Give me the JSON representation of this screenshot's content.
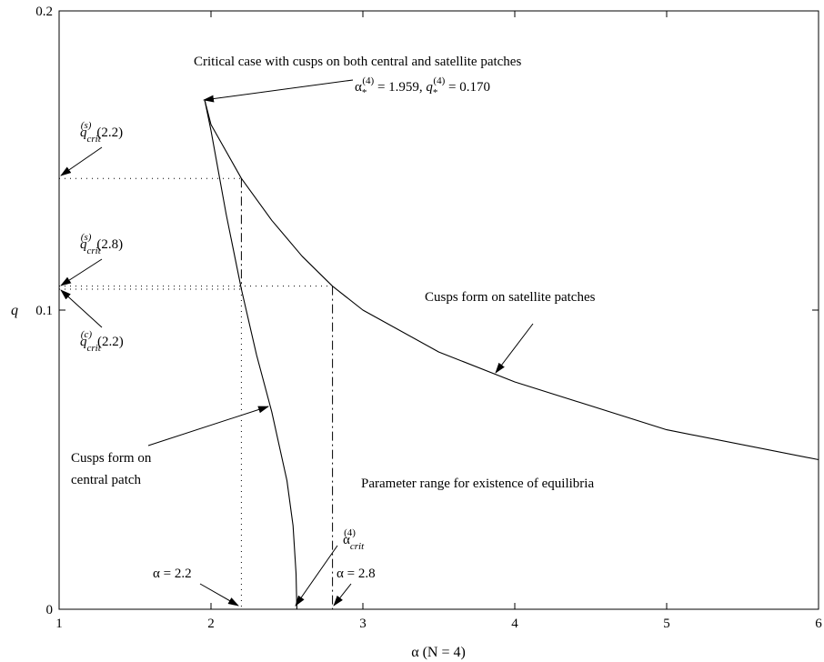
{
  "chart_data": {
    "type": "line",
    "xlabel": "α (N = 4)",
    "ylabel": "q",
    "xlim": [
      1,
      6
    ],
    "ylim": [
      0,
      0.2
    ],
    "xticks": [
      "1",
      "2",
      "3",
      "4",
      "5",
      "6"
    ],
    "yticks": [
      "0",
      "0.1",
      "0.2"
    ],
    "grid": false,
    "series": [
      {
        "name": "Cusps form on satellite patches",
        "x": [
          1.959,
          2.0,
          2.2,
          2.4,
          2.6,
          2.8,
          3.0,
          3.5,
          4.0,
          5.0,
          6.0
        ],
        "y": [
          0.17,
          0.162,
          0.144,
          0.13,
          0.118,
          0.108,
          0.1,
          0.086,
          0.076,
          0.06,
          0.05
        ]
      },
      {
        "name": "Cusps form on central patch",
        "x": [
          1.959,
          2.0,
          2.1,
          2.2,
          2.3,
          2.4,
          2.5,
          2.54,
          2.56,
          2.565
        ],
        "y": [
          0.17,
          0.16,
          0.132,
          0.107,
          0.085,
          0.066,
          0.043,
          0.028,
          0.012,
          0.0
        ]
      }
    ],
    "guides": [
      {
        "x": 2.2,
        "y": 0.144,
        "v_style": "dashdot",
        "v_from": 0.144,
        "v_to": 0.107
      },
      {
        "x": 2.2,
        "y": 0.107,
        "v_style": "dotted",
        "v_from": 0.107,
        "v_to": 0.0
      },
      {
        "x": 2.8,
        "y": 0.108,
        "v_style": "dashdot",
        "v_from": 0.108,
        "v_to": 0.0
      }
    ],
    "annotations": {
      "critical_title": "Critical case with cusps on both central and satellite patches",
      "critical_point": {
        "x": 1.959,
        "y": 0.17
      },
      "critical_values": {
        "a_sym": "α",
        "sup": "(4)",
        "eq1": " = 1.959, ",
        "q_sym": "q",
        "eq2": " = 0.170"
      },
      "q_s_22": {
        "q": "q",
        "sup": "(s)",
        "sub": "crit",
        "arg": "(2.2)"
      },
      "q_s_28": {
        "q": "q",
        "sup": "(s)",
        "sub": "crit",
        "arg": "(2.8)"
      },
      "q_c_22": {
        "q": "q",
        "sup": "(c)",
        "sub": "crit",
        "arg": "(2.2)"
      },
      "satellite_label": "Cusps form on satellite patches",
      "central_label_line1": "Cusps form on",
      "central_label_line2": "central patch",
      "range_label": "Parameter range for existence of equilibria",
      "alpha_crit": {
        "a_sym": "α",
        "sup": "(4)",
        "sub": "crit"
      },
      "alpha_22_label": "α = 2.2",
      "alpha_28_label": "α = 2.8"
    }
  }
}
